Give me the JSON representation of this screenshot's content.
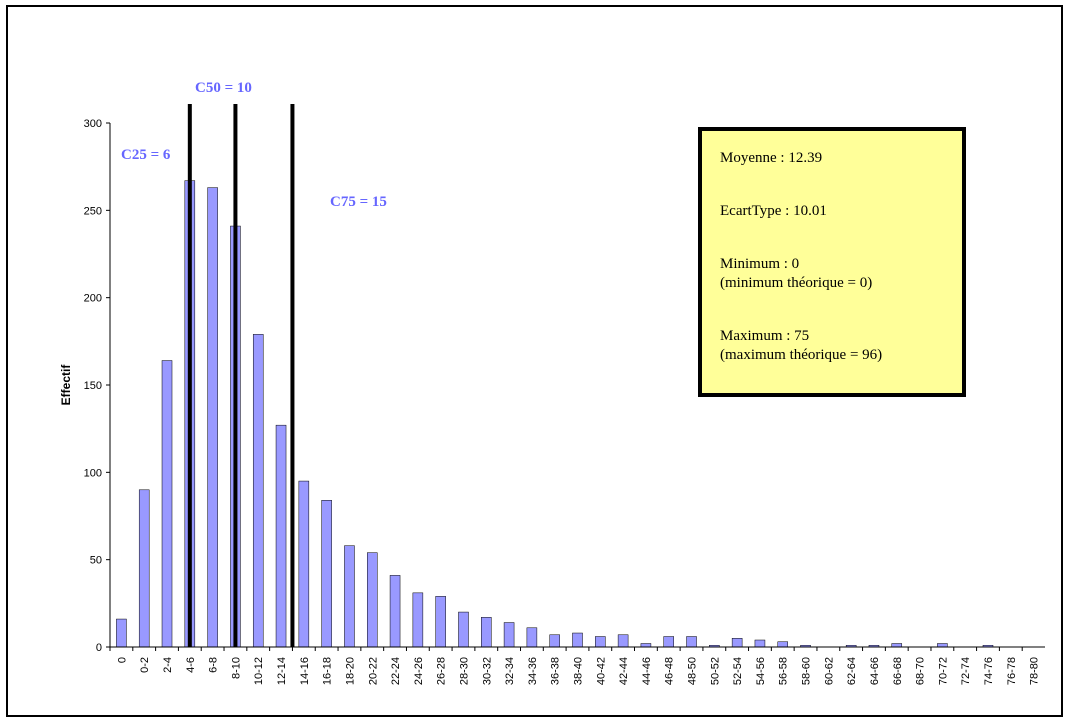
{
  "chart_data": {
    "type": "bar",
    "ylabel": "Effectif",
    "xlabel": "",
    "ylim": [
      0,
      300
    ],
    "yticks": [
      0,
      50,
      100,
      150,
      200,
      250,
      300
    ],
    "bar_color": "#9999ff",
    "categories": [
      "0",
      "0-2",
      "2-4",
      "4-6",
      "6-8",
      "8-10",
      "10-12",
      "12-14",
      "14-16",
      "16-18",
      "18-20",
      "20-22",
      "22-24",
      "24-26",
      "26-28",
      "28-30",
      "30-32",
      "32-34",
      "34-36",
      "36-38",
      "38-40",
      "40-42",
      "42-44",
      "44-46",
      "46-48",
      "48-50",
      "50-52",
      "52-54",
      "54-56",
      "56-58",
      "58-60",
      "60-62",
      "62-64",
      "64-66",
      "66-68",
      "68-70",
      "70-72",
      "72-74",
      "74-76",
      "76-78",
      "78-80"
    ],
    "values": [
      16,
      90,
      164,
      267,
      263,
      241,
      179,
      127,
      95,
      84,
      58,
      54,
      41,
      31,
      29,
      20,
      17,
      14,
      11,
      7,
      8,
      6,
      7,
      2,
      6,
      6,
      1,
      5,
      4,
      3,
      1,
      0,
      1,
      1,
      2,
      0,
      2,
      0,
      1,
      0,
      0
    ],
    "quartile_lines": [
      {
        "label": "C25 = 6",
        "position": 6
      },
      {
        "label": "C50 = 10",
        "position": 10
      },
      {
        "label": "C75 = 15",
        "position": 15
      }
    ],
    "stats_box": {
      "mean": "Moyenne : 12.39",
      "std": "EcartType : 10.01",
      "min": "Minimum : 0",
      "min_theory": "(minimum théorique = 0)",
      "max": "Maximum : 75",
      "max_theory": "(maximum théorique = 96)"
    }
  }
}
